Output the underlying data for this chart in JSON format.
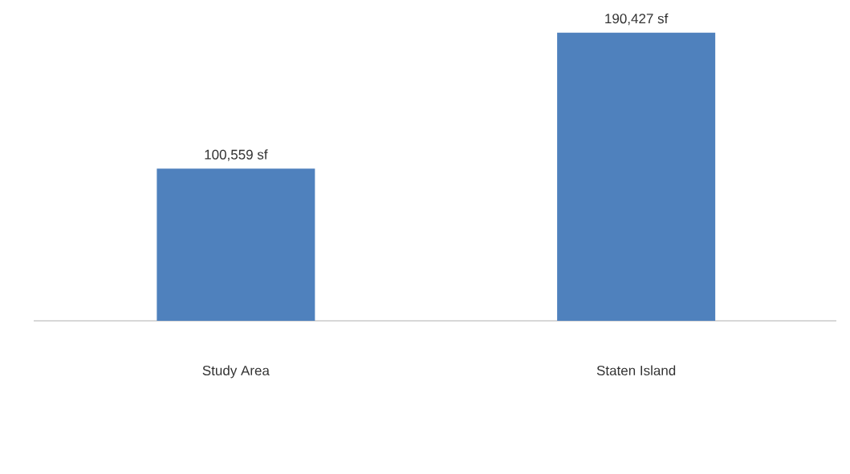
{
  "chart_data": {
    "type": "bar",
    "categories": [
      "Study Area",
      "Staten Island"
    ],
    "values": [
      100559,
      190427
    ],
    "value_labels": [
      "100,559 sf",
      "190,427 sf"
    ],
    "color": "#4f81bd"
  }
}
